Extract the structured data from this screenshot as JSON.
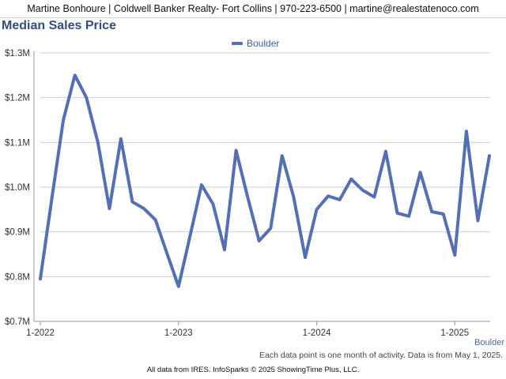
{
  "header": {
    "contact_line": "Martine Bonhoure | Coldwell Banker Realty- Fort Collins | 970-223-6500 | martine@realestatenoco.com"
  },
  "chart_data": {
    "type": "line",
    "title": "Median Sales Price",
    "legend": {
      "position": "top-center",
      "entries": [
        "Boulder"
      ]
    },
    "series": [
      {
        "name": "Boulder",
        "color": "#5470b4",
        "values": [
          795000,
          975000,
          1150000,
          1250000,
          1200000,
          1100000,
          952000,
          1108000,
          967000,
          952000,
          927000,
          852000,
          778000,
          890000,
          1005000,
          962000,
          860000,
          1082000,
          978000,
          880000,
          908000,
          1070000,
          978000,
          843000,
          950000,
          980000,
          972000,
          1018000,
          993000,
          978000,
          1080000,
          942000,
          935000,
          1033000,
          945000,
          940000,
          848000,
          1125000,
          925000,
          1070000
        ]
      }
    ],
    "x_ticks": [
      "1-2022",
      "1-2023",
      "1-2024",
      "1-2025"
    ],
    "x_tick_index": [
      0,
      12,
      24,
      36
    ],
    "y_ticks": [
      "$0.7M",
      "$0.8M",
      "$0.9M",
      "$1.0M",
      "$1.1M",
      "$1.2M",
      "$1.3M"
    ],
    "ylim": [
      700000,
      1300000
    ],
    "grid": true,
    "series_end_label": "Boulder"
  },
  "footer": {
    "note": "Each data point is one month of activity. Data is from May 1, 2025.",
    "credit": "All data from IRES. InfoSparks © 2025 ShowingTime Plus, LLC."
  }
}
